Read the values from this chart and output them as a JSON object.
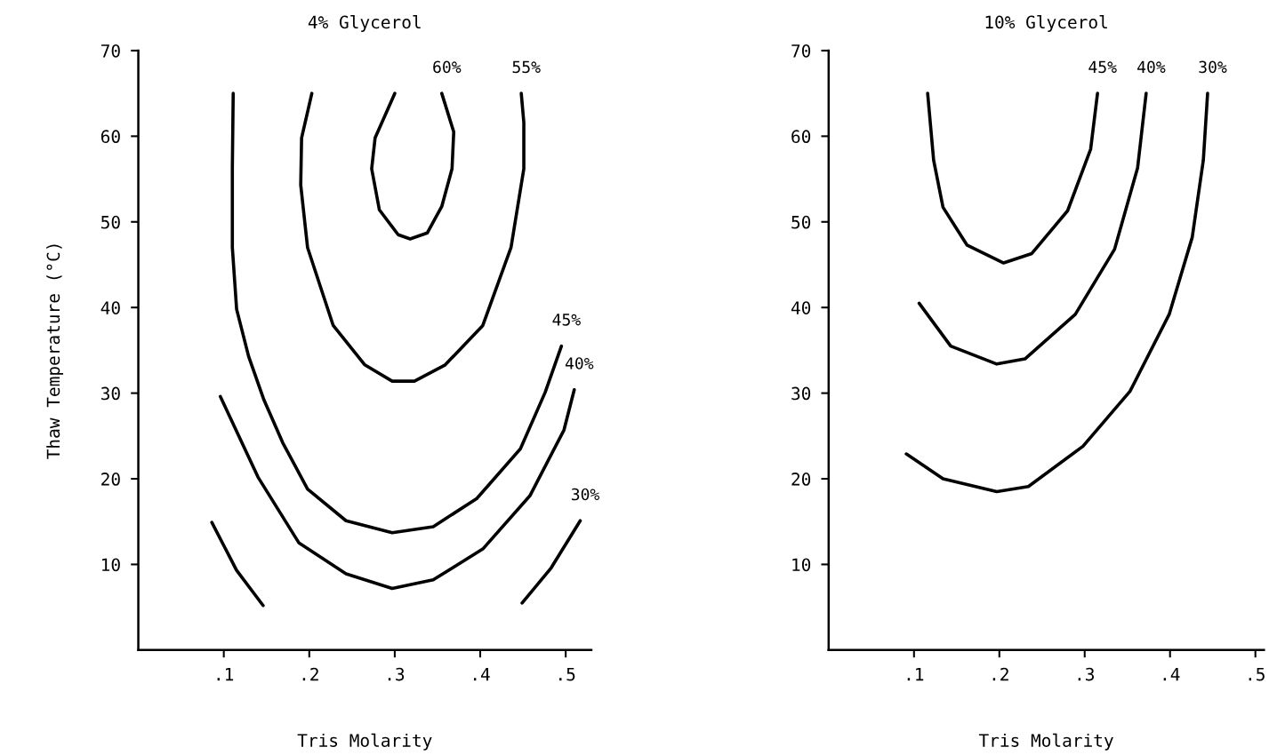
{
  "chart_data": [
    {
      "type": "line",
      "title": "4% Glycerol",
      "xlabel": "Tris Molarity",
      "ylabel": "Thaw Temperature (°C)",
      "xlim": [
        0,
        0.53
      ],
      "ylim": [
        0,
        70
      ],
      "xticks": [
        {
          "value": 0.1,
          "label": ".1"
        },
        {
          "value": 0.2,
          "label": ".2"
        },
        {
          "value": 0.3,
          "label": ".3"
        },
        {
          "value": 0.4,
          "label": ".4"
        },
        {
          "value": 0.5,
          "label": ".5"
        }
      ],
      "yticks": [
        10,
        20,
        30,
        40,
        50,
        60,
        70
      ],
      "grid": false,
      "legend": false,
      "marker": "none",
      "line_style": "solid",
      "series": [
        {
          "name": "60%",
          "color": "#000000",
          "x": [
            0.3,
            0.277,
            0.273,
            0.282,
            0.304,
            0.318,
            0.338,
            0.355,
            0.367,
            0.369,
            0.355
          ],
          "values": [
            65,
            59.8,
            56.2,
            51.4,
            48.5,
            48.0,
            48.7,
            51.8,
            56.2,
            60.5,
            65
          ]
        },
        {
          "name": "55%",
          "color": "#000000",
          "x": [
            0.203,
            0.191,
            0.19,
            0.198,
            0.228,
            0.265,
            0.297,
            0.323,
            0.359,
            0.403,
            0.436,
            0.451,
            0.451,
            0.448
          ],
          "values": [
            65,
            59.8,
            54.3,
            47.0,
            37.9,
            33.3,
            31.4,
            31.4,
            33.3,
            37.9,
            47.0,
            56.2,
            61.6,
            65
          ]
        },
        {
          "name": "45%",
          "color": "#000000",
          "x": [
            0.111,
            0.11,
            0.11,
            0.115,
            0.129,
            0.147,
            0.169,
            0.198,
            0.243,
            0.297,
            0.345,
            0.396,
            0.447,
            0.476,
            0.495
          ],
          "values": [
            65,
            56.2,
            47.0,
            39.8,
            34.3,
            29.2,
            24.2,
            18.8,
            15.1,
            13.7,
            14.4,
            17.7,
            23.5,
            30.1,
            35.5
          ]
        },
        {
          "name": "40%",
          "color": "#000000",
          "x": [
            0.096,
            0.14,
            0.188,
            0.243,
            0.297,
            0.345,
            0.403,
            0.458,
            0.498,
            0.51
          ],
          "values": [
            29.6,
            20.2,
            12.5,
            8.9,
            7.2,
            8.2,
            11.8,
            18.0,
            25.7,
            30.4
          ]
        },
        {
          "name": "30%",
          "color": "#000000",
          "x": [
            0.086,
            0.115,
            0.146,
            0.3,
            0.449,
            0.483,
            0.517
          ],
          "values": [
            14.9,
            9.3,
            5.2,
            null,
            5.5,
            9.6,
            15.1
          ]
        }
      ]
    },
    {
      "type": "line",
      "title": "10% Glycerol",
      "xlabel": "Tris Molarity",
      "xlim": [
        0,
        0.51
      ],
      "ylim": [
        0,
        70
      ],
      "xticks": [
        {
          "value": 0.1,
          "label": ".1"
        },
        {
          "value": 0.2,
          "label": ".2"
        },
        {
          "value": 0.3,
          "label": ".3"
        },
        {
          "value": 0.4,
          "label": ".4"
        },
        {
          "value": 0.5,
          "label": ".5"
        }
      ],
      "yticks": [
        10,
        20,
        30,
        40,
        50,
        60,
        70
      ],
      "grid": false,
      "legend": false,
      "marker": "none",
      "line_style": "solid",
      "series": [
        {
          "name": "45%",
          "color": "#000000",
          "x": [
            0.116,
            0.123,
            0.134,
            0.162,
            0.205,
            0.238,
            0.28,
            0.307,
            0.315
          ],
          "values": [
            65,
            57.2,
            51.7,
            47.3,
            45.2,
            46.3,
            51.3,
            58.5,
            65
          ]
        },
        {
          "name": "40%",
          "color": "#000000",
          "x": [
            0.106,
            0.143,
            0.197,
            0.23,
            0.289,
            0.335,
            0.362,
            0.372
          ],
          "values": [
            40.5,
            35.5,
            33.4,
            34.0,
            39.2,
            46.8,
            56.3,
            65
          ]
        },
        {
          "name": "30%",
          "color": "#000000",
          "x": [
            0.091,
            0.134,
            0.197,
            0.234,
            0.298,
            0.353,
            0.399,
            0.426,
            0.439,
            0.444
          ],
          "values": [
            22.9,
            20.0,
            18.5,
            19.1,
            23.8,
            30.2,
            39.2,
            48.2,
            57.2,
            65
          ]
        }
      ]
    }
  ]
}
